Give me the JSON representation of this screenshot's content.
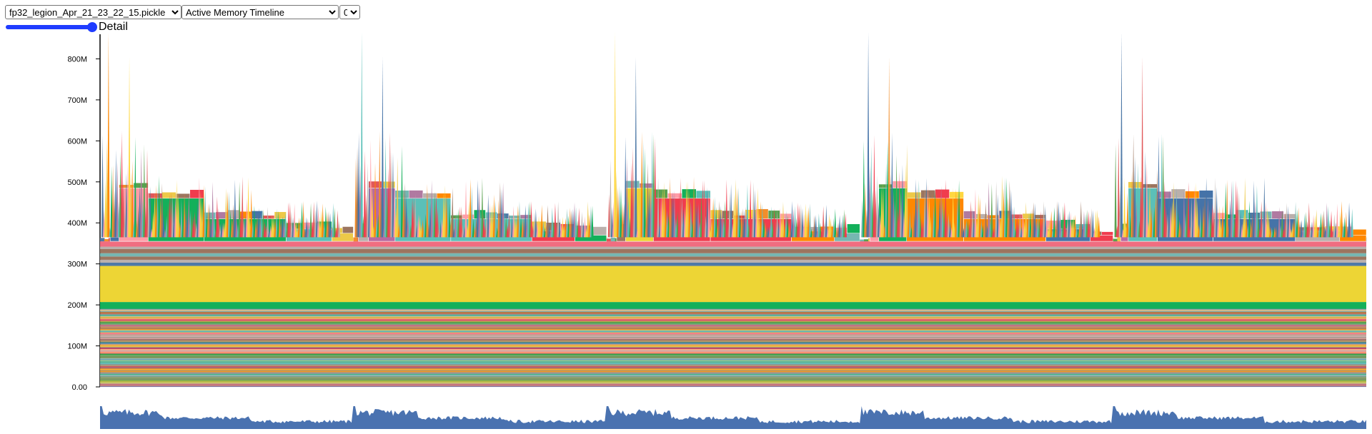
{
  "controls": {
    "file_select": {
      "selected": "fp32_legion_Apr_21_23_22_15.pickle",
      "options": [
        "fp32_legion_Apr_21_23_22_15.pickle"
      ]
    },
    "view_select": {
      "selected": "Active Memory Timeline",
      "options": [
        "Active Memory Timeline"
      ]
    },
    "index_select": {
      "selected": "0",
      "options": [
        "0"
      ]
    },
    "detail_label": "Detail",
    "detail_level": 1.0
  },
  "colors": {
    "palette": [
      "#4e79a7",
      "#f28e2b",
      "#e15759",
      "#76b7b2",
      "#59a14f",
      "#edc948",
      "#b07aa1",
      "#ff9da7",
      "#9c755f",
      "#bab0ac",
      "#13b05a",
      "#f03c4e",
      "#ff8800",
      "#5bc0b8",
      "#ffd740",
      "#4573a8"
    ],
    "brush_fill": "#4a72b0"
  },
  "chart_data": {
    "type": "area",
    "title": "",
    "xlabel": "",
    "ylabel": "",
    "y_ticks": [
      "0.00",
      "100M",
      "200M",
      "300M",
      "400M",
      "500M",
      "600M",
      "700M",
      "800M"
    ],
    "ylim": [
      0,
      860
    ],
    "y_unit": "MB",
    "persistent_bands": [
      {
        "from": 0,
        "to": 8,
        "color": "#b07aa1"
      },
      {
        "from": 8,
        "to": 14,
        "color": "#edc948"
      },
      {
        "from": 14,
        "to": 24,
        "color": "#59a14f"
      },
      {
        "from": 24,
        "to": 36,
        "color": "#76b7b2"
      },
      {
        "from": 36,
        "to": 46,
        "color": "#f28e2b"
      },
      {
        "from": 46,
        "to": 52,
        "color": "#e15759"
      },
      {
        "from": 52,
        "to": 70,
        "color": "#5bc0b8"
      },
      {
        "from": 70,
        "to": 82,
        "color": "#59a14f"
      },
      {
        "from": 82,
        "to": 92,
        "color": "#ff9da7"
      },
      {
        "from": 92,
        "to": 96,
        "color": "#f03c4e"
      },
      {
        "from": 96,
        "to": 104,
        "color": "#edc948"
      },
      {
        "from": 104,
        "to": 110,
        "color": "#4e79a7"
      },
      {
        "from": 110,
        "to": 118,
        "color": "#9c755f"
      },
      {
        "from": 118,
        "to": 124,
        "color": "#bab0ac"
      },
      {
        "from": 124,
        "to": 132,
        "color": "#ff9da7"
      },
      {
        "from": 132,
        "to": 138,
        "color": "#76b7b2"
      },
      {
        "from": 138,
        "to": 146,
        "color": "#f28e2b"
      },
      {
        "from": 146,
        "to": 152,
        "color": "#b07aa1"
      },
      {
        "from": 152,
        "to": 160,
        "color": "#59a14f"
      },
      {
        "from": 160,
        "to": 166,
        "color": "#e15759"
      },
      {
        "from": 166,
        "to": 172,
        "color": "#edc948"
      },
      {
        "from": 172,
        "to": 178,
        "color": "#76b7b2"
      },
      {
        "from": 178,
        "to": 184,
        "color": "#9c755f"
      },
      {
        "from": 184,
        "to": 190,
        "color": "#bab0ac"
      },
      {
        "from": 190,
        "to": 207,
        "color": "#13b05a"
      },
      {
        "from": 207,
        "to": 295,
        "color": "#edd535"
      },
      {
        "from": 295,
        "to": 303,
        "color": "#4e79a7"
      },
      {
        "from": 303,
        "to": 310,
        "color": "#bab0ac"
      },
      {
        "from": 310,
        "to": 318,
        "color": "#9c755f"
      },
      {
        "from": 318,
        "to": 326,
        "color": "#76b7b2"
      },
      {
        "from": 326,
        "to": 336,
        "color": "#9c755f"
      },
      {
        "from": 336,
        "to": 342,
        "color": "#bab0ac"
      },
      {
        "from": 342,
        "to": 355,
        "color": "#f06d80"
      }
    ],
    "cycles": [
      {
        "start": 0,
        "length": 0.2,
        "blocks": [
          {
            "x0": 0.008,
            "x1": 0.038,
            "h": 10,
            "color": "#4573a8"
          },
          {
            "x0": 0.015,
            "x1": 0.038,
            "h": 130,
            "color": "#ff9da7"
          },
          {
            "x0": 0.038,
            "x1": 0.082,
            "h": 105,
            "color": "#13b05a"
          },
          {
            "x0": 0.082,
            "x1": 0.147,
            "h": 55,
            "color": "#13b05a"
          },
          {
            "x0": 0.147,
            "x1": 0.183,
            "h": 30,
            "color": "#5bc0b8"
          },
          {
            "x0": 0.183,
            "x1": 0.2,
            "h": 20,
            "color": "#edc948"
          }
        ]
      },
      {
        "start": 0.2,
        "length": 0.2,
        "blocks": [
          {
            "x0": 0.004,
            "x1": 0.033,
            "h": 25,
            "color": "#bab0ac"
          },
          {
            "x0": 0.012,
            "x1": 0.033,
            "h": 130,
            "color": "#b96aa0"
          },
          {
            "x0": 0.033,
            "x1": 0.077,
            "h": 105,
            "color": "#5bc0b8"
          },
          {
            "x0": 0.077,
            "x1": 0.141,
            "h": 55,
            "color": "#5bc0b8"
          },
          {
            "x0": 0.141,
            "x1": 0.175,
            "h": 25,
            "color": "#f03c4e"
          },
          {
            "x0": 0.175,
            "x1": 0.2,
            "h": 15,
            "color": "#13b05a"
          }
        ]
      },
      {
        "start": 0.4,
        "length": 0.2,
        "blocks": [
          {
            "x0": 0.008,
            "x1": 0.037,
            "h": 25,
            "color": "#9c755f"
          },
          {
            "x0": 0.015,
            "x1": 0.037,
            "h": 130,
            "color": "#edd535"
          },
          {
            "x0": 0.037,
            "x1": 0.082,
            "h": 105,
            "color": "#f03c4e"
          },
          {
            "x0": 0.082,
            "x1": 0.146,
            "h": 55,
            "color": "#f03c4e"
          },
          {
            "x0": 0.146,
            "x1": 0.18,
            "h": 25,
            "color": "#ff8800"
          },
          {
            "x0": 0.18,
            "x1": 0.2,
            "h": 20,
            "color": "#76b7b2"
          }
        ]
      },
      {
        "start": 0.6,
        "length": 0.2,
        "blocks": [
          {
            "x0": 0.008,
            "x1": 0.037,
            "h": 25,
            "color": "#ff9da7"
          },
          {
            "x0": 0.015,
            "x1": 0.037,
            "h": 130,
            "color": "#13b05a"
          },
          {
            "x0": 0.037,
            "x1": 0.082,
            "h": 105,
            "color": "#ff8800"
          },
          {
            "x0": 0.082,
            "x1": 0.147,
            "h": 55,
            "color": "#ff8800"
          },
          {
            "x0": 0.147,
            "x1": 0.182,
            "h": 30,
            "color": "#4573a8"
          },
          {
            "x0": 0.182,
            "x1": 0.2,
            "h": 15,
            "color": "#f03c4e"
          }
        ]
      },
      {
        "start": 0.8,
        "length": 0.2,
        "blocks": [
          {
            "x0": 0.006,
            "x1": 0.035,
            "h": 25,
            "color": "#b96aa0"
          },
          {
            "x0": 0.012,
            "x1": 0.035,
            "h": 130,
            "color": "#5bc0b8"
          },
          {
            "x0": 0.035,
            "x1": 0.079,
            "h": 105,
            "color": "#4573a8"
          },
          {
            "x0": 0.079,
            "x1": 0.144,
            "h": 55,
            "color": "#4573a8"
          },
          {
            "x0": 0.144,
            "x1": 0.179,
            "h": 25,
            "color": "#bab0ac"
          },
          {
            "x0": 0.179,
            "x1": 0.2,
            "h": 15,
            "color": "#ff8800"
          }
        ]
      }
    ]
  }
}
